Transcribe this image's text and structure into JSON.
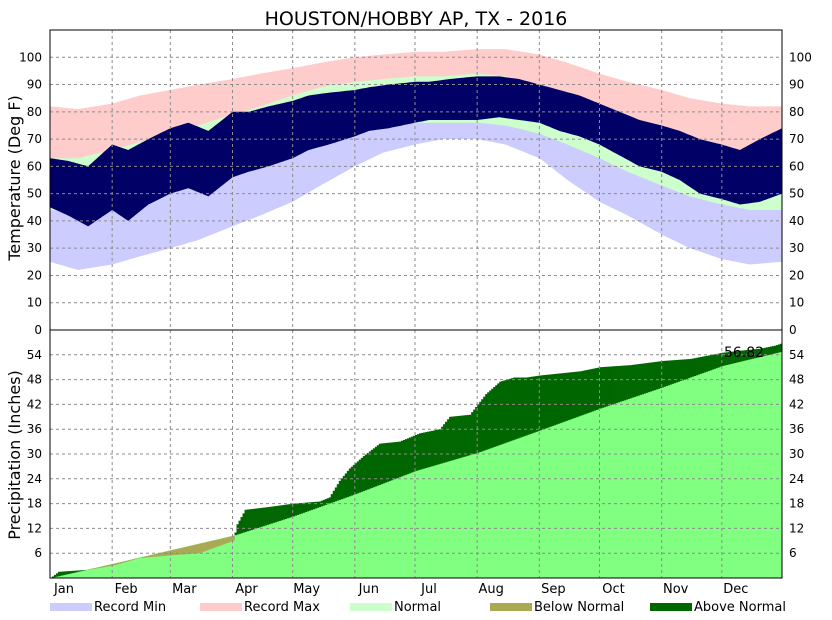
{
  "chart_data": [
    {
      "type": "bar",
      "title": "HOUSTON/HOBBY AP, TX - 2016",
      "ylabel": "Temperature (Deg F)",
      "ylim": [
        0,
        110
      ],
      "yticks": [
        0,
        10,
        20,
        30,
        40,
        50,
        60,
        70,
        80,
        90,
        100
      ],
      "months": [
        "Jan",
        "Feb",
        "Mar",
        "Apr",
        "May",
        "Jun",
        "Jul",
        "Aug",
        "Sep",
        "Oct",
        "Nov",
        "Dec"
      ],
      "month_starts": [
        1,
        32,
        61,
        92,
        122,
        153,
        183,
        214,
        245,
        275,
        306,
        336
      ],
      "days": 366,
      "series": [
        {
          "name": "Record Min",
          "color": "#ccccff",
          "x_day": [
            1,
            15,
            32,
            46,
            61,
            75,
            92,
            106,
            122,
            136,
            153,
            167,
            183,
            197,
            214,
            228,
            245,
            259,
            275,
            289,
            306,
            320,
            336,
            350,
            366
          ],
          "values": [
            25,
            22,
            24,
            27,
            30,
            33,
            38,
            42,
            47,
            53,
            60,
            65,
            68,
            70,
            70,
            68,
            63,
            55,
            47,
            42,
            35,
            30,
            26,
            24,
            25
          ]
        },
        {
          "name": "Record Max",
          "color": "#ffcccc",
          "x_day": [
            1,
            15,
            32,
            46,
            61,
            75,
            92,
            106,
            122,
            136,
            153,
            167,
            183,
            197,
            214,
            228,
            245,
            259,
            275,
            289,
            306,
            320,
            336,
            350,
            366
          ],
          "values": [
            82,
            81,
            83,
            86,
            88,
            90,
            92,
            94,
            96,
            98,
            100,
            101,
            102,
            102,
            103,
            103,
            101,
            98,
            94,
            91,
            88,
            85,
            83,
            82,
            82
          ]
        },
        {
          "name": "Normal Low",
          "color": "#ccffcc",
          "x_day": [
            1,
            15,
            32,
            46,
            61,
            75,
            92,
            106,
            122,
            136,
            153,
            167,
            183,
            197,
            214,
            228,
            245,
            259,
            275,
            289,
            306,
            320,
            336,
            350,
            366
          ],
          "values": [
            44,
            43,
            46,
            49,
            52,
            55,
            59,
            62,
            66,
            70,
            73,
            75,
            76,
            76,
            76,
            75,
            72,
            68,
            63,
            58,
            53,
            49,
            46,
            44,
            44
          ]
        },
        {
          "name": "Normal High",
          "color": "#ccffcc",
          "x_day": [
            1,
            15,
            32,
            46,
            61,
            75,
            92,
            106,
            122,
            136,
            153,
            167,
            183,
            197,
            214,
            228,
            245,
            259,
            275,
            289,
            306,
            320,
            336,
            350,
            366
          ],
          "values": [
            63,
            63,
            66,
            69,
            72,
            75,
            79,
            82,
            86,
            89,
            91,
            92,
            93,
            93,
            94,
            93,
            90,
            87,
            82,
            78,
            72,
            68,
            64,
            63,
            63
          ]
        },
        {
          "name": "Actual Min",
          "color": "#000066",
          "x_day": [
            1,
            10,
            20,
            32,
            40,
            50,
            61,
            70,
            80,
            92,
            100,
            110,
            122,
            130,
            140,
            153,
            160,
            170,
            183,
            190,
            200,
            214,
            225,
            235,
            245,
            255,
            265,
            275,
            285,
            295,
            306,
            315,
            325,
            336,
            345,
            355,
            366
          ],
          "values": [
            45,
            42,
            38,
            44,
            40,
            46,
            50,
            52,
            49,
            56,
            58,
            60,
            63,
            66,
            68,
            71,
            73,
            74,
            76,
            77,
            77,
            77,
            78,
            77,
            76,
            73,
            71,
            68,
            64,
            60,
            58,
            55,
            50,
            48,
            46,
            47,
            50
          ]
        },
        {
          "name": "Actual Max",
          "color": "#000066",
          "x_day": [
            1,
            10,
            20,
            32,
            40,
            50,
            61,
            70,
            80,
            92,
            100,
            110,
            122,
            130,
            140,
            153,
            160,
            170,
            183,
            190,
            200,
            214,
            225,
            235,
            245,
            255,
            265,
            275,
            285,
            295,
            306,
            315,
            325,
            336,
            345,
            355,
            366
          ],
          "values": [
            63,
            62,
            60,
            68,
            66,
            70,
            74,
            76,
            73,
            80,
            80,
            82,
            84,
            86,
            87,
            88,
            89,
            90,
            91,
            91,
            92,
            93,
            93,
            92,
            90,
            88,
            86,
            83,
            80,
            77,
            75,
            73,
            70,
            68,
            66,
            70,
            74
          ]
        }
      ]
    },
    {
      "type": "area",
      "ylabel": "Precipitation (Inches)",
      "ylim": [
        0,
        60
      ],
      "yticks": [
        6,
        12,
        18,
        24,
        30,
        36,
        42,
        48,
        54
      ],
      "annotation": "56.82",
      "series": [
        {
          "name": "Normal (cumulative)",
          "color": "#80ff80",
          "x_day": [
            1,
            32,
            61,
            92,
            122,
            153,
            183,
            214,
            245,
            275,
            306,
            336,
            366
          ],
          "values": [
            0,
            3.4,
            6.7,
            10.2,
            14.9,
            20.3,
            25.9,
            30.3,
            35.7,
            41.0,
            46.1,
            51.3,
            54.8
          ]
        },
        {
          "name": "Actual (cumulative)",
          "color": "#006600",
          "x_day": [
            1,
            5,
            20,
            32,
            45,
            61,
            75,
            92,
            94,
            98,
            110,
            122,
            135,
            140,
            145,
            150,
            157,
            165,
            175,
            185,
            195,
            200,
            210,
            218,
            225,
            232,
            238,
            245,
            255,
            265,
            275,
            290,
            306,
            320,
            336,
            345,
            355,
            362,
            366
          ],
          "values": [
            0,
            1.5,
            2.0,
            3.0,
            4.8,
            5.5,
            6.0,
            9.0,
            13.0,
            16.5,
            17.2,
            18.0,
            18.5,
            19.5,
            23.5,
            26.5,
            29.5,
            32.5,
            33.0,
            35.0,
            36.0,
            39.0,
            39.5,
            44.5,
            47.5,
            48.5,
            48.5,
            49.0,
            49.5,
            50.0,
            51.0,
            51.5,
            52.5,
            53.0,
            54.5,
            55.0,
            55.5,
            56.2,
            56.82
          ]
        }
      ]
    }
  ],
  "legend": [
    {
      "label": "Record Min",
      "color": "#ccccff"
    },
    {
      "label": "Record Max",
      "color": "#ffcccc"
    },
    {
      "label": "Normal",
      "color": "#ccffcc"
    },
    {
      "label": "Below Normal",
      "color": "#aaaa55"
    },
    {
      "label": "Above Normal",
      "color": "#006600"
    }
  ]
}
